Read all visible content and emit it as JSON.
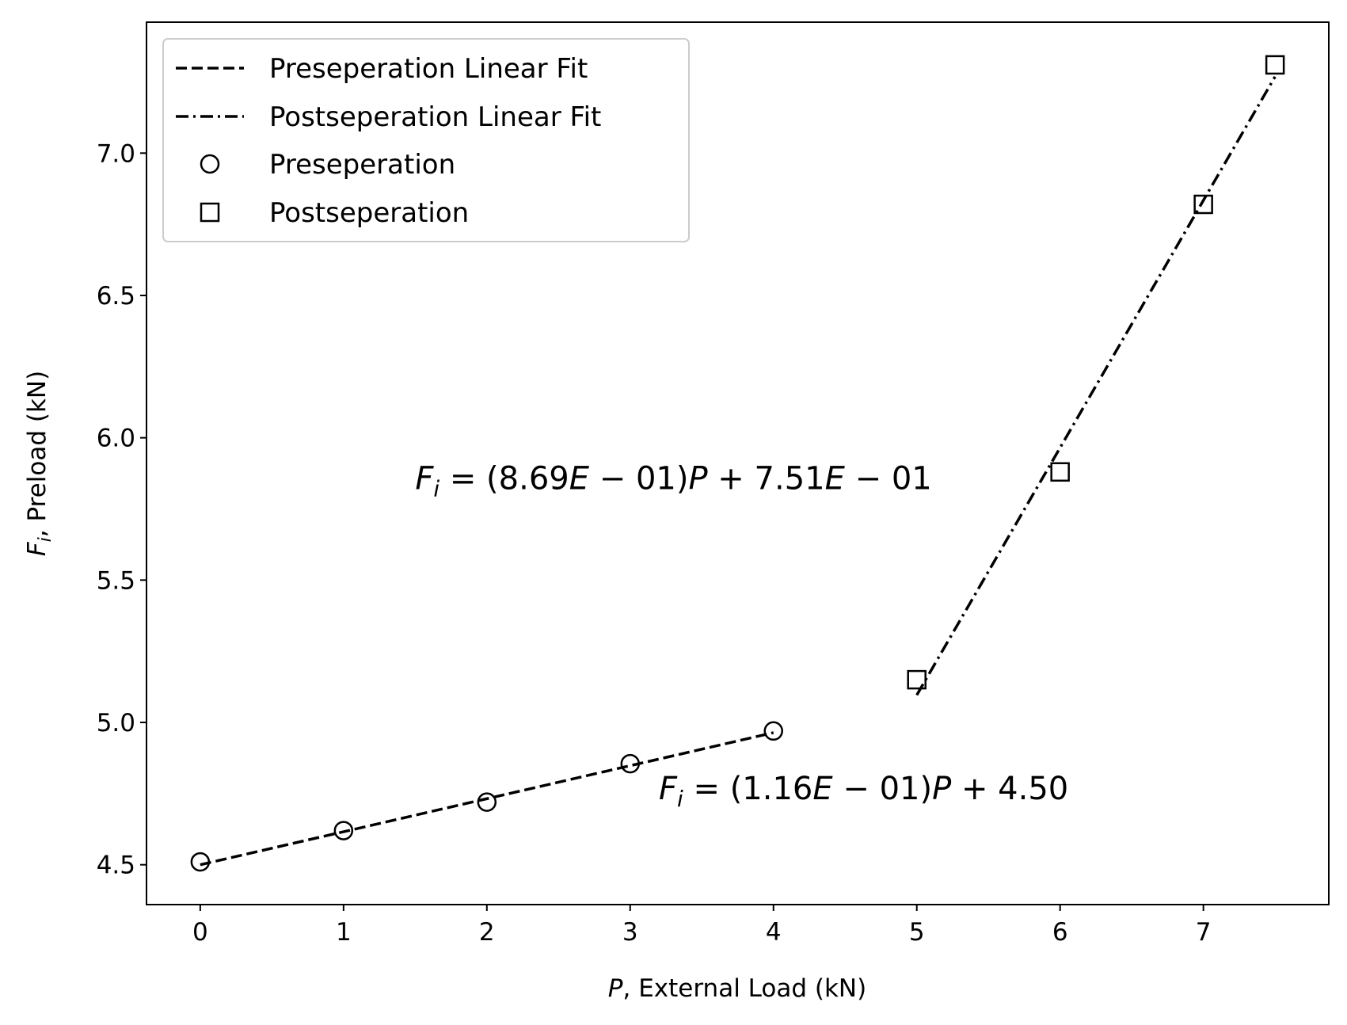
{
  "chart_data": {
    "type": "scatter",
    "title": "",
    "xlabel": {
      "var": "P",
      "rest": ", External Load (kN)"
    },
    "ylabel": {
      "var": "F",
      "sub": "i",
      "rest": ", Preload (kN)"
    },
    "xlim": [
      -0.375,
      7.875
    ],
    "ylim": [
      4.36,
      7.46
    ],
    "x_ticks": [
      0,
      1,
      2,
      3,
      4,
      5,
      6,
      7
    ],
    "y_ticks": [
      4.5,
      5.0,
      5.5,
      6.0,
      6.5,
      7.0
    ],
    "y_tick_labels": [
      "4.5",
      "5.0",
      "5.5",
      "6.0",
      "6.5",
      "7.0"
    ],
    "grid": false,
    "legend_position": "upper-left",
    "series": [
      {
        "name": "Preseperation",
        "marker": "circle",
        "x": [
          0,
          1,
          2,
          3,
          4
        ],
        "y": [
          4.51,
          4.62,
          4.72,
          4.855,
          4.97
        ]
      },
      {
        "name": "Postseperation",
        "marker": "square",
        "x": [
          5,
          6,
          7,
          7.5
        ],
        "y": [
          5.15,
          5.88,
          6.82,
          7.31
        ]
      }
    ],
    "fits": [
      {
        "name": "Preseperation Linear Fit",
        "style": "dashed",
        "slope": 0.116,
        "intercept": 4.5,
        "x_range": [
          0,
          4
        ]
      },
      {
        "name": "Postseperation Linear Fit",
        "style": "dashdot",
        "slope": 0.869,
        "intercept": 0.751,
        "x_range": [
          5,
          7.5
        ]
      }
    ],
    "annotations": [
      {
        "var": "F",
        "sub": "i",
        "text": " = (8.69",
        "e1": "E",
        "t2": " − 01)",
        "p": "P",
        "t3": " + 7.51",
        "e2": "E",
        "t4": " − 01",
        "x": 1.5,
        "y": 5.82
      },
      {
        "var": "F",
        "sub": "i",
        "text": " = (1.16",
        "e1": "E",
        "t2": " − 01)",
        "p": "P",
        "t3": " + 4.50",
        "e2": "",
        "t4": "",
        "x": 3.2,
        "y": 4.73
      }
    ],
    "legend": [
      {
        "label": "Preseperation Linear Fit",
        "kind": "dashed"
      },
      {
        "label": "Postseperation Linear Fit",
        "kind": "dashdot"
      },
      {
        "label": "Preseperation",
        "kind": "circle"
      },
      {
        "label": "Postseperation",
        "kind": "square"
      }
    ]
  }
}
